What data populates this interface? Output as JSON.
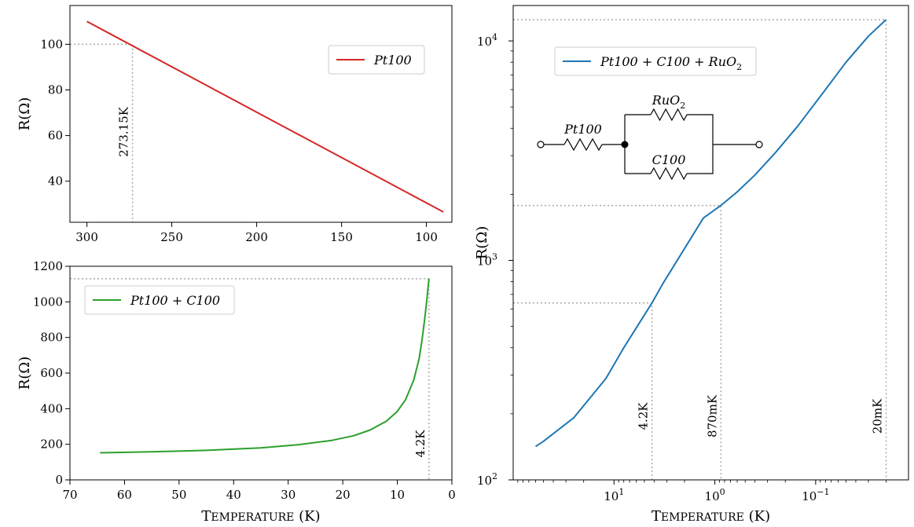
{
  "chart_data": [
    {
      "type": "line",
      "panel": "top-left",
      "xlabel": "",
      "ylabel": "R(Ω)",
      "xlim": [
        310,
        85
      ],
      "ylim": [
        22,
        117
      ],
      "xticks": [
        300,
        250,
        200,
        150,
        100
      ],
      "yticks": [
        40,
        60,
        80,
        100
      ],
      "legend_position": "upper-right",
      "series": [
        {
          "name": "Pt100",
          "color": "#d62728",
          "x": [
            300,
            90
          ],
          "y": [
            110,
            26.5
          ]
        }
      ],
      "guides": {
        "x": 273.15,
        "y": 100
      },
      "annotations": [
        {
          "text": "273.15K",
          "x": 273.15
        }
      ]
    },
    {
      "type": "line",
      "panel": "bottom-left",
      "xlabel": "Temperature (K)",
      "ylabel": "R(Ω)",
      "xlim": [
        70,
        0
      ],
      "ylim": [
        0,
        1200
      ],
      "xticks": [
        70,
        60,
        50,
        40,
        30,
        20,
        10,
        0
      ],
      "yticks": [
        0,
        200,
        400,
        600,
        800,
        1000,
        1200
      ],
      "legend_position": "upper-left",
      "series": [
        {
          "name": "Pt100 + C100",
          "color": "#2ca02c",
          "x": [
            64.5,
            55,
            45,
            35,
            28,
            22,
            18,
            15,
            12,
            10,
            8.5,
            7,
            6,
            5.5,
            5,
            4.6,
            4.2
          ],
          "y": [
            152,
            158,
            166,
            180,
            198,
            222,
            248,
            280,
            330,
            385,
            450,
            560,
            680,
            780,
            900,
            1010,
            1130
          ]
        }
      ],
      "guides": {
        "x": 4.2,
        "y": 1130
      },
      "annotations": [
        {
          "text": "4.2K",
          "x": 4.2
        }
      ]
    },
    {
      "type": "line",
      "panel": "right",
      "xlabel": "Temperature (K)",
      "ylabel": "R(Ω)",
      "xscale": "log",
      "yscale": "log",
      "xlim": [
        100,
        0.012
      ],
      "ylim": [
        100,
        14500
      ],
      "xticks": [
        {
          "value": 10,
          "label": "10^1"
        },
        {
          "value": 1,
          "label": "10^0"
        },
        {
          "value": 0.1,
          "label": "10^-1"
        }
      ],
      "yticks": [
        {
          "value": 100,
          "label": "10^2"
        },
        {
          "value": 1000,
          "label": "10^3"
        },
        {
          "value": 10000,
          "label": "10^4"
        }
      ],
      "legend_position": "upper-left",
      "series": [
        {
          "name": "Pt100 + C100 + RuO2",
          "color": "#1f77b4",
          "x": [
            60,
            50,
            25,
            12,
            8,
            4.2,
            3.3,
            1.3,
            0.87,
            0.6,
            0.4,
            0.25,
            0.15,
            0.08,
            0.05,
            0.03,
            0.02
          ],
          "y": [
            142,
            150,
            192,
            290,
            400,
            640,
            780,
            1560,
            1780,
            2050,
            2450,
            3100,
            4100,
            6000,
            8000,
            10500,
            12500
          ]
        }
      ],
      "guides": [
        {
          "x": 4.2,
          "y": 640
        },
        {
          "x": 0.87,
          "y": 1780
        },
        {
          "x": 0.02,
          "y": 12500
        }
      ],
      "annotations": [
        {
          "text": "4.2K",
          "x": 4.2
        },
        {
          "text": "870mK",
          "x": 0.87
        },
        {
          "text": "20mK",
          "x": 0.02
        }
      ],
      "circuit": {
        "labels": [
          "Pt100",
          "RuO2",
          "C100"
        ]
      }
    }
  ]
}
